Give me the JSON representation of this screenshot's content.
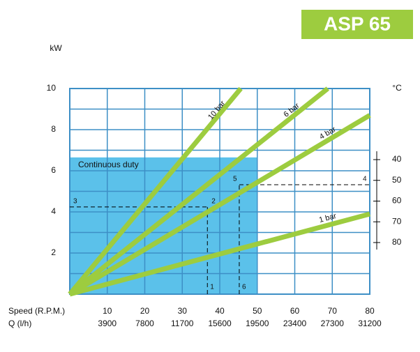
{
  "chart_data": {
    "type": "line",
    "badge": "ASP 65",
    "y_label": "kW",
    "y2_label": "°C",
    "x_label": "Speed (R.P.M.)",
    "x2_label": "Q (l/h)",
    "xlim": [
      0,
      80
    ],
    "xticks": [
      10,
      20,
      30,
      40,
      50,
      60,
      70,
      80
    ],
    "x2_labels": [
      "3900",
      "7800",
      "11700",
      "15600",
      "19500",
      "23400",
      "27300",
      "31200"
    ],
    "ylim": [
      0,
      10
    ],
    "yticks": [
      2,
      4,
      6,
      8,
      10
    ],
    "yminorticks": [
      1,
      3,
      5,
      7,
      9
    ],
    "y2lim": [
      104.9,
      5.7
    ],
    "y2ticks": [
      40,
      50,
      60,
      70,
      80
    ],
    "region": {
      "label": "Continuous duty",
      "x": [
        0,
        50
      ],
      "y": [
        0,
        6.65
      ],
      "color": "#5bc1ea"
    },
    "grid": true,
    "series": [
      {
        "name": "10 bar",
        "color": "#9dcc3f",
        "x": [
          0,
          45.6
        ],
        "values": [
          0,
          10
        ]
      },
      {
        "name": "6 bar",
        "color": "#9dcc3f",
        "x": [
          0,
          68.8
        ],
        "values": [
          0,
          10
        ]
      },
      {
        "name": "4 bar",
        "color": "#9dcc3f",
        "x": [
          0,
          80
        ],
        "values": [
          0,
          8.7
        ]
      },
      {
        "name": "1 bar",
        "color": "#9dcc3f",
        "x": [
          0,
          80
        ],
        "values": [
          0,
          3.9
        ]
      }
    ],
    "guides": [
      {
        "x": 36.7,
        "y": 4.24,
        "labels": [
          "1",
          "2",
          "3"
        ]
      },
      {
        "x": 45.2,
        "y": 5.32,
        "labels": [
          "6",
          "5",
          "4"
        ]
      }
    ]
  }
}
